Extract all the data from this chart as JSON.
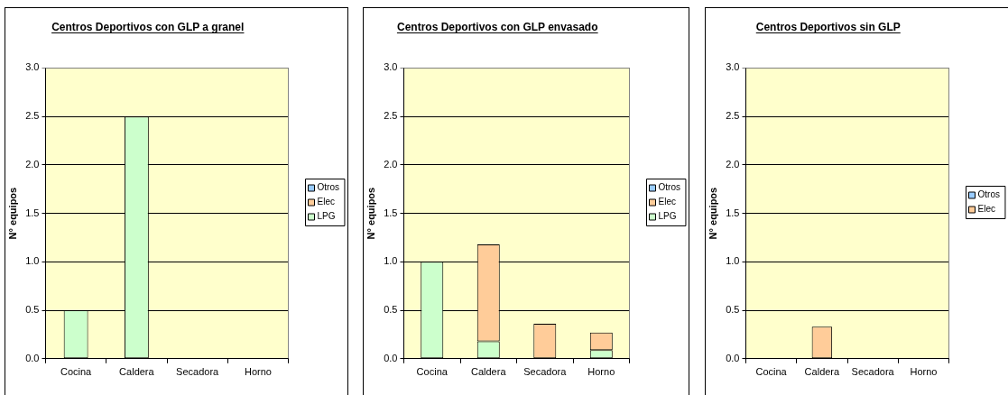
{
  "chart_data": [
    {
      "type": "bar",
      "title": "Centros Deportivos con GLP a granel",
      "ylabel": "N° equipos",
      "categories": [
        "Cocina",
        "Caldera",
        "Secadora",
        "Horno"
      ],
      "stacked": true,
      "series": [
        {
          "name": "LPG",
          "color": "#ccffcc",
          "values": [
            0.5,
            2.5,
            0,
            0
          ]
        },
        {
          "name": "Elec",
          "color": "#ffcc99",
          "values": [
            0,
            0,
            0,
            0
          ]
        },
        {
          "name": "Otros",
          "color": "#99ccff",
          "values": [
            0,
            0,
            0,
            0
          ]
        }
      ],
      "ylim": [
        0,
        3
      ],
      "yticks": [
        {
          "value": 0,
          "label": "0.0"
        },
        {
          "value": 0.5,
          "label": "0.5"
        },
        {
          "value": 1,
          "label": "1.0"
        },
        {
          "value": 1.5,
          "label": "1.5"
        },
        {
          "value": 2,
          "label": "2.0"
        },
        {
          "value": 2.5,
          "label": "2.5"
        },
        {
          "value": 3,
          "label": "3.0"
        }
      ],
      "grid": "y",
      "legend": "right"
    },
    {
      "type": "bar",
      "title": "Centros Deportivos con GLP envasado",
      "ylabel": "N° equipos",
      "categories": [
        "Cocina",
        "Caldera",
        "Secadora",
        "Horno"
      ],
      "stacked": true,
      "series": [
        {
          "name": "LPG",
          "color": "#ccffcc",
          "values": [
            1.0,
            0.18,
            0,
            0.09
          ]
        },
        {
          "name": "Elec",
          "color": "#ffcc99",
          "values": [
            0,
            1.0,
            0.36,
            0.18
          ]
        },
        {
          "name": "Otros",
          "color": "#99ccff",
          "values": [
            0,
            0,
            0,
            0
          ]
        }
      ],
      "ylim": [
        0,
        3
      ],
      "yticks": [
        {
          "value": 0,
          "label": "0.0"
        },
        {
          "value": 0.5,
          "label": "0.5"
        },
        {
          "value": 1,
          "label": "1.0"
        },
        {
          "value": 1.5,
          "label": "1.5"
        },
        {
          "value": 2,
          "label": "2.0"
        },
        {
          "value": 2.5,
          "label": "2.5"
        },
        {
          "value": 3,
          "label": "3.0"
        }
      ],
      "grid": "y",
      "legend": "right"
    },
    {
      "type": "bar",
      "title": "Centros Deportivos sin GLP",
      "ylabel": "N° equipos",
      "categories": [
        "Cocina",
        "Caldera",
        "Secadora",
        "Horno"
      ],
      "stacked": true,
      "series": [
        {
          "name": "Elec",
          "color": "#ffcc99",
          "values": [
            0,
            0.33,
            0,
            0
          ]
        },
        {
          "name": "Otros",
          "color": "#99ccff",
          "values": [
            0,
            0,
            0,
            0
          ]
        }
      ],
      "ylim": [
        0,
        3
      ],
      "yticks": [
        {
          "value": 0,
          "label": "0.0"
        },
        {
          "value": 0.5,
          "label": "0.5"
        },
        {
          "value": 1,
          "label": "1.0"
        },
        {
          "value": 1.5,
          "label": "1.5"
        },
        {
          "value": 2,
          "label": "2.0"
        },
        {
          "value": 2.5,
          "label": "2.5"
        },
        {
          "value": 3,
          "label": "3.0"
        }
      ],
      "grid": "y",
      "legend": "right"
    }
  ]
}
